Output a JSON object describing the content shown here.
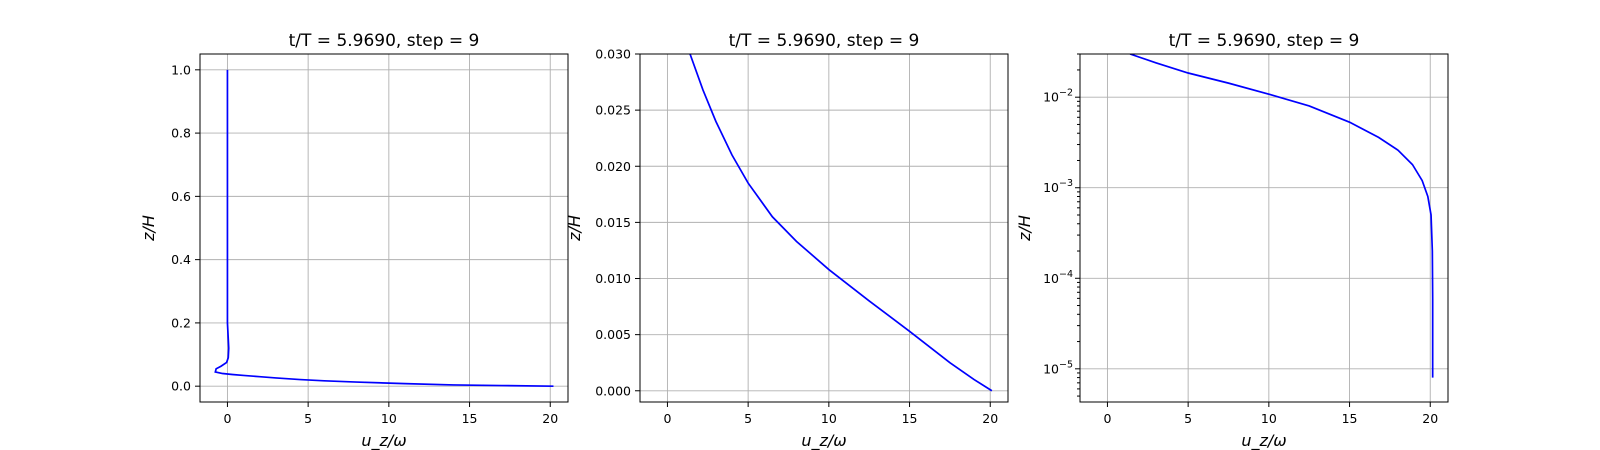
{
  "figure": {
    "background": "#ffffff"
  },
  "chart_data": [
    {
      "type": "line",
      "title": "t/T = 5.9690, step = 9",
      "xlabel": "u_z/ω",
      "ylabel": "z/H",
      "xlim": [
        -1.7,
        21.1
      ],
      "ylim": [
        -0.05,
        1.05
      ],
      "yscale": "linear",
      "xticks": [
        0,
        5,
        10,
        15,
        20
      ],
      "yticks": [
        0.0,
        0.2,
        0.4,
        0.6,
        0.8,
        1.0
      ],
      "ytick_labels": [
        "0.0",
        "0.2",
        "0.4",
        "0.6",
        "0.8",
        "1.0"
      ],
      "grid": true,
      "series": [
        {
          "color": "#0000ff",
          "x": [
            20.2,
            17.0,
            14.0,
            11.0,
            8.0,
            6.0,
            4.5,
            3.0,
            2.0,
            1.0,
            0.3,
            -0.3,
            -0.75,
            -0.7,
            -0.4,
            -0.05,
            0.05,
            0.08,
            0.05,
            0.0,
            0.0
          ],
          "y": [
            0.0,
            0.002,
            0.004,
            0.008,
            0.013,
            0.017,
            0.021,
            0.026,
            0.03,
            0.034,
            0.037,
            0.04,
            0.045,
            0.055,
            0.063,
            0.075,
            0.09,
            0.12,
            0.15,
            0.2,
            1.0
          ]
        }
      ]
    },
    {
      "type": "line",
      "title": "t/T = 5.9690, step = 9",
      "xlabel": "u_z/ω",
      "ylabel": "z/H",
      "xlim": [
        -1.7,
        21.1
      ],
      "ylim": [
        -0.001,
        0.03
      ],
      "yscale": "linear",
      "xticks": [
        0,
        5,
        10,
        15,
        20
      ],
      "yticks": [
        0.0,
        0.005,
        0.01,
        0.015,
        0.02,
        0.025,
        0.03
      ],
      "ytick_labels": [
        "0.000",
        "0.005",
        "0.010",
        "0.015",
        "0.020",
        "0.025",
        "0.030"
      ],
      "grid": true,
      "series": [
        {
          "color": "#0000ff",
          "x": [
            20.1,
            19.0,
            17.5,
            15.0,
            12.5,
            10.0,
            8.0,
            6.5,
            5.0,
            4.0,
            3.0,
            2.2,
            1.4
          ],
          "y": [
            0.0,
            0.001,
            0.0025,
            0.0053,
            0.008,
            0.0108,
            0.0133,
            0.0155,
            0.0185,
            0.021,
            0.024,
            0.0268,
            0.03
          ]
        }
      ]
    },
    {
      "type": "line",
      "title": "t/T = 5.9690, step = 9",
      "xlabel": "u_z/ω",
      "ylabel": "z/H",
      "xlim": [
        -1.7,
        21.1
      ],
      "ylim": [
        4.3e-06,
        0.03
      ],
      "yscale": "log",
      "xticks": [
        0,
        5,
        10,
        15,
        20
      ],
      "yticks": [
        1e-05,
        0.0001,
        0.001,
        0.01
      ],
      "ytick_base": "10",
      "ytick_exponents": [
        "−5",
        "−4",
        "−3",
        "−2"
      ],
      "grid": true,
      "series": [
        {
          "color": "#0000ff",
          "x": [
            20.15,
            20.15,
            20.13,
            20.05,
            19.85,
            19.5,
            18.9,
            18.0,
            16.8,
            15.0,
            12.5,
            10.0,
            7.5,
            5.0,
            3.0,
            1.4
          ],
          "y": [
            8e-06,
            6e-05,
            0.0002,
            0.0005,
            0.0008,
            0.0012,
            0.0018,
            0.0026,
            0.0036,
            0.0053,
            0.008,
            0.0108,
            0.0143,
            0.0185,
            0.024,
            0.03
          ]
        }
      ]
    }
  ]
}
